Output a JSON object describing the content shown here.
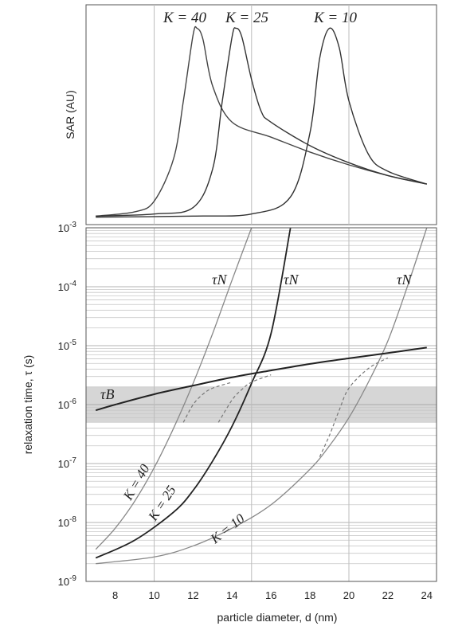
{
  "chart_data": [
    {
      "type": "line",
      "panel": "top",
      "ylabel": "SAR (AU)",
      "y_scale": "arbitrary",
      "xlim": [
        6.5,
        24.5
      ],
      "grid_x": [
        10,
        15,
        20
      ],
      "series": [
        {
          "name": "K = 40",
          "x": [
            7,
            9,
            10,
            11,
            11.5,
            12,
            12.2,
            12.5,
            13,
            14,
            16,
            18,
            20,
            22,
            24
          ],
          "y": [
            0.01,
            0.03,
            0.08,
            0.28,
            0.55,
            0.86,
            0.89,
            0.84,
            0.62,
            0.45,
            0.38,
            0.31,
            0.25,
            0.2,
            0.16
          ]
        },
        {
          "name": "K = 25",
          "x": [
            7,
            10,
            12,
            13,
            13.5,
            14,
            14.2,
            14.5,
            15,
            15.5,
            16,
            18,
            20,
            22,
            24
          ],
          "y": [
            0.01,
            0.02,
            0.05,
            0.23,
            0.55,
            0.85,
            0.89,
            0.85,
            0.65,
            0.5,
            0.45,
            0.34,
            0.26,
            0.2,
            0.16
          ]
        },
        {
          "name": "K = 10",
          "x": [
            7,
            12,
            15,
            17,
            18,
            18.5,
            19,
            19.5,
            20,
            21,
            22,
            24
          ],
          "y": [
            0.005,
            0.01,
            0.02,
            0.1,
            0.4,
            0.75,
            0.89,
            0.8,
            0.55,
            0.3,
            0.22,
            0.16
          ]
        }
      ],
      "labels": [
        "K = 40",
        "K = 25",
        "K = 10"
      ]
    },
    {
      "type": "line",
      "panel": "bottom",
      "xlabel": "particle diameter, d (nm)",
      "ylabel": "relaxation time, τ (s)",
      "xlim": [
        6.5,
        24.5
      ],
      "ylim": [
        1e-09,
        0.001
      ],
      "y_scale": "log",
      "x_ticks": [
        "8",
        "10",
        "12",
        "14",
        "16",
        "18",
        "20",
        "22",
        "24"
      ],
      "y_ticks": [
        {
          "base": "10",
          "exp": "-3"
        },
        {
          "base": "10",
          "exp": "-4"
        },
        {
          "base": "10",
          "exp": "-5"
        },
        {
          "base": "10",
          "exp": "-6"
        },
        {
          "base": "10",
          "exp": "-7"
        },
        {
          "base": "10",
          "exp": "-8"
        },
        {
          "base": "10",
          "exp": "-9"
        }
      ],
      "shaded_band_y": [
        5e-07,
        2e-06
      ],
      "series": [
        {
          "name": "τN, K = 40",
          "x": [
            7,
            8,
            9,
            10,
            11,
            12,
            13,
            14,
            15
          ],
          "y": [
            3.5e-09,
            8e-09,
            2.3e-08,
            8.5e-08,
            4e-07,
            2.3e-06,
            1.6e-05,
            0.00013,
            0.001
          ]
        },
        {
          "name": "τN, K = 25",
          "x": [
            7,
            9,
            11,
            12,
            13,
            14,
            15,
            16,
            17
          ],
          "y": [
            2.5e-09,
            5e-09,
            1.5e-08,
            3.5e-08,
            1.1e-07,
            4.3e-07,
            2.3e-06,
            1.6e-05,
            0.001
          ]
        },
        {
          "name": "τN, K = 10",
          "x": [
            7,
            10,
            12,
            14,
            16,
            18,
            19,
            20,
            21,
            22,
            23,
            24
          ],
          "y": [
            2e-09,
            2.6e-09,
            4e-09,
            8e-09,
            2e-08,
            8e-08,
            2e-07,
            6e-07,
            2.4e-06,
            1.2e-05,
            0.0001,
            0.001
          ]
        },
        {
          "name": "τB",
          "x": [
            7,
            8,
            10,
            12,
            14,
            16,
            18,
            20,
            22,
            24
          ],
          "y": [
            8e-07,
            1e-06,
            1.5e-06,
            2.1e-06,
            2.9e-06,
            3.8e-06,
            4.9e-06,
            6.1e-06,
            7.5e-06,
            9.3e-06
          ]
        },
        {
          "name": "effective, K = 40",
          "dashed": true,
          "x": [
            11.5,
            12,
            12.5,
            13,
            14
          ],
          "y": [
            5e-07,
            1e-06,
            1.5e-06,
            1.9e-06,
            2.4e-06
          ]
        },
        {
          "name": "effective, K = 25",
          "dashed": true,
          "x": [
            13.3,
            14,
            14.5,
            15,
            16
          ],
          "y": [
            5e-07,
            1.2e-06,
            1.8e-06,
            2.4e-06,
            3.2e-06
          ]
        },
        {
          "name": "effective, K = 10",
          "dashed": true,
          "x": [
            18.5,
            19,
            19.5,
            20,
            21,
            22
          ],
          "y": [
            1.3e-07,
            3e-07,
            8e-07,
            1.9e-06,
            4.1e-06,
            6.2e-06
          ]
        }
      ],
      "labels": {
        "tau_N": "τN",
        "tau_B": "τB",
        "k40": "K = 40",
        "k25": "K = 25",
        "k10": "K = 10"
      }
    }
  ]
}
